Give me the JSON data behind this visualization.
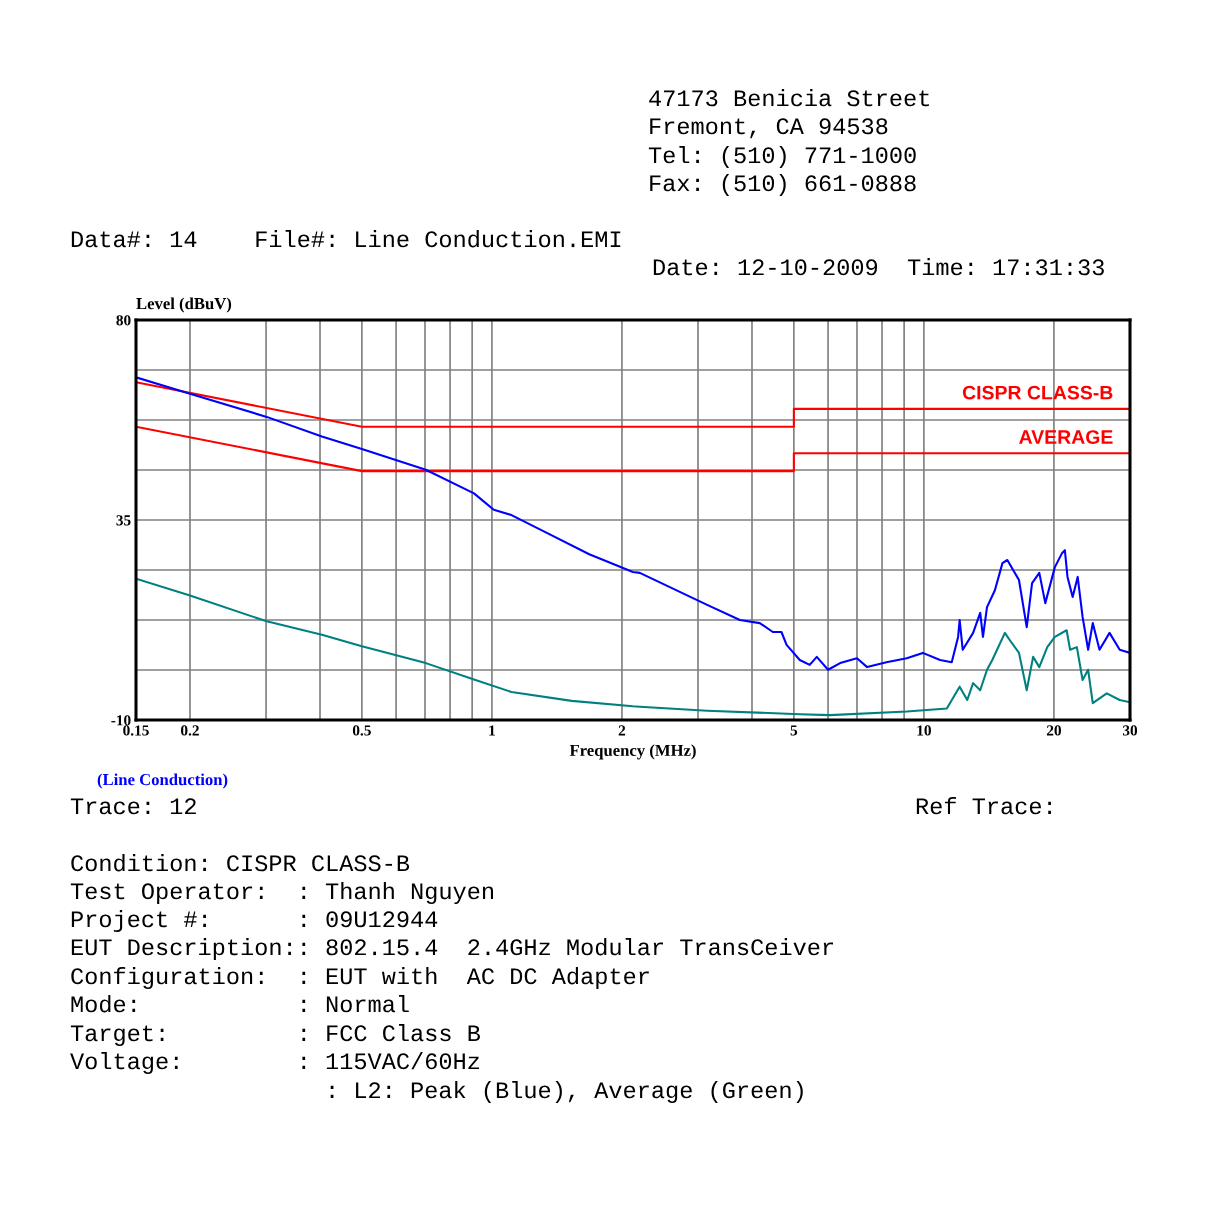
{
  "chart_data": {
    "type": "line",
    "xlabel": "Frequency (MHz)",
    "ylabel": "Level (dBuV)",
    "log": "x",
    "xlim": [
      0.15,
      30
    ],
    "ylim": [
      -10,
      80
    ],
    "xticks": [
      0.15,
      0.2,
      {
        "value": 0.3,
        "label": null
      },
      {
        "value": 0.4,
        "label": null
      },
      0.5,
      {
        "value": 0.6,
        "label": null
      },
      {
        "value": 0.7,
        "label": null
      },
      {
        "value": 0.8,
        "label": null
      },
      {
        "value": 0.9,
        "label": null
      },
      1,
      2,
      {
        "value": 3,
        "label": null
      },
      {
        "value": 4,
        "label": null
      },
      5,
      {
        "value": 6,
        "label": null
      },
      {
        "value": 7,
        "label": null
      },
      {
        "value": 8,
        "label": null
      },
      {
        "value": 9,
        "label": null
      },
      10,
      20,
      30
    ],
    "yticks": [
      -10,
      {
        "value": 1.25,
        "label": null
      },
      {
        "value": 12.5,
        "label": null
      },
      {
        "value": 23.75,
        "label": null
      },
      35,
      {
        "value": 46.25,
        "label": null
      },
      {
        "value": 57.5,
        "label": null
      },
      {
        "value": 68.75,
        "label": null
      },
      80
    ],
    "grid": true,
    "legend": false,
    "marker": "none",
    "line_style": "solid",
    "series": [
      {
        "name": "CISPR CLASS-B",
        "color": "#ff0000",
        "x": [
          0.15,
          0.5,
          5,
          5,
          30
        ],
        "values": [
          66,
          56,
          56,
          60,
          60
        ]
      },
      {
        "name": "AVERAGE",
        "color": "#ff0000",
        "x": [
          0.15,
          0.5,
          5,
          5,
          30
        ],
        "values": [
          56,
          46,
          46,
          50,
          50
        ]
      },
      {
        "color": "#0000ff",
        "x": [
          0.15,
          0.2,
          0.301,
          0.404,
          0.5,
          0.703,
          0.909,
          1.01,
          1.11,
          1.34,
          1.68,
          2.12,
          2.2,
          3.15,
          3.75,
          4.17,
          4.47,
          4.68,
          4.81,
          5.16,
          5.44,
          5.65,
          6.0,
          6.4,
          7.0,
          7.39,
          8.19,
          9.13,
          9.94,
          10.9,
          11.6,
          12.0,
          12.1,
          12.3,
          13.0,
          13.5,
          13.7,
          14.0,
          14.6,
          15.2,
          15.6,
          16.6,
          17.3,
          17.8,
          18.5,
          19.1,
          20.1,
          20.9,
          21.2,
          21.5,
          22.1,
          22.7,
          23.3,
          24.0,
          24.6,
          25.5,
          26.9,
          28.4,
          30
        ],
        "values": [
          67.1,
          63.4,
          58.2,
          53.8,
          51.0,
          46.3,
          41.0,
          37.3,
          36.1,
          32.1,
          27.3,
          23.3,
          23.1,
          15.9,
          12.5,
          11.8,
          9.8,
          9.8,
          6.9,
          3.5,
          2.4,
          4.2,
          1.3,
          2.8,
          3.9,
          1.9,
          3.0,
          3.9,
          5.1,
          3.5,
          3.0,
          8.7,
          12.5,
          5.8,
          9.6,
          14.1,
          8.7,
          15.4,
          19.2,
          25.3,
          26.0,
          21.5,
          10.9,
          20.8,
          23.1,
          16.3,
          24.4,
          27.6,
          28.2,
          22.2,
          17.7,
          22.2,
          13.2,
          5.8,
          11.8,
          5.8,
          9.6,
          5.8,
          5.1
        ]
      },
      {
        "color": "#008080",
        "x": [
          0.15,
          0.2,
          0.301,
          0.404,
          0.5,
          0.703,
          0.909,
          1.11,
          1.53,
          2.12,
          2.2,
          3.15,
          5.16,
          6.06,
          9.13,
          11.3,
          12.1,
          12.6,
          13.0,
          13.5,
          14.0,
          14.4,
          15.4,
          15.8,
          16.6,
          17.3,
          17.9,
          18.5,
          19.3,
          20.1,
          21.4,
          21.8,
          22.6,
          23.3,
          24.0,
          24.6,
          26.5,
          28.4,
          30
        ],
        "values": [
          21.8,
          18.0,
          12.2,
          9.2,
          6.6,
          2.8,
          -0.9,
          -3.7,
          -5.7,
          -6.9,
          -7.0,
          -7.9,
          -8.7,
          -8.9,
          -8.1,
          -7.4,
          -2.5,
          -5.5,
          -1.7,
          -3.3,
          1.3,
          3.5,
          9.6,
          8.0,
          5.1,
          -3.3,
          4.2,
          1.9,
          6.4,
          8.7,
          10.2,
          5.8,
          6.4,
          -1.0,
          1.3,
          -6.2,
          -4.0,
          -5.5,
          -6.0
        ]
      }
    ],
    "annotations": [
      "47173 Benicia Street",
      "Fremont, CA 94538",
      "Tel: (510) 771-1000",
      "Fax: (510) 661-0888",
      "Data#: 14    File#: Line Conduction.EMI",
      "Date: 12-10-2009  Time: 17:31:33",
      "(Line Conduction)",
      "Trace: 12",
      "Ref Trace:",
      "Condition: CISPR CLASS-B",
      "Test Operator:  : Thanh Nguyen",
      "Project #:      : 09U12944",
      "EUT Description:: 802.15.4  2.4GHz Modular TransCeiver",
      "Configuration:  : EUT with  AC DC Adapter",
      "Mode:           : Normal",
      "Target:         : FCC Class B",
      "Voltage:        : 115VAC/60Hz",
      ": L2: Peak (Blue), Average (Green)"
    ]
  }
}
